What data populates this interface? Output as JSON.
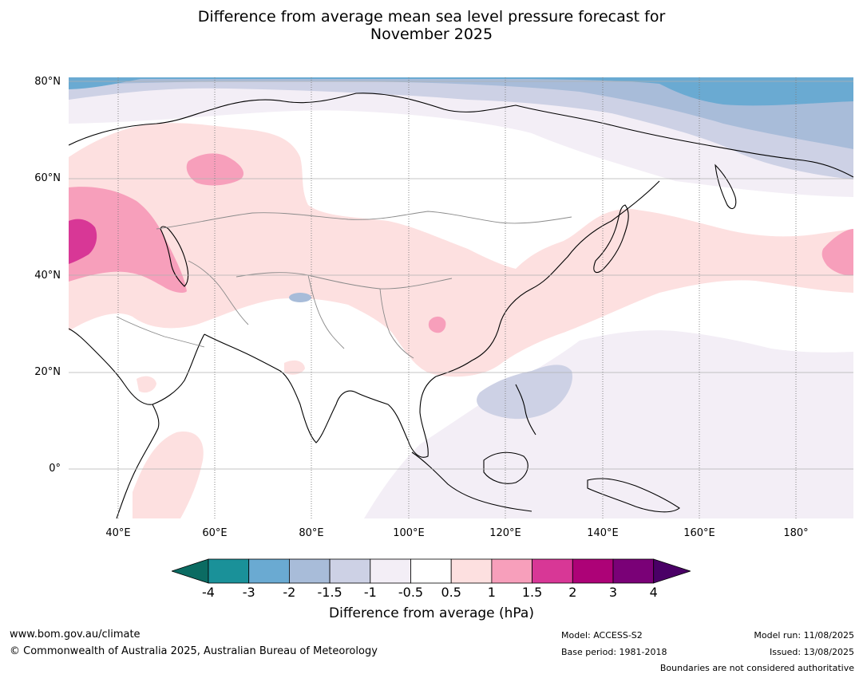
{
  "title": {
    "line1": "Difference from average mean sea level pressure forecast for",
    "line2": "November 2025"
  },
  "map": {
    "region": "Asia",
    "lat_labels": [
      "80°N",
      "60°N",
      "40°N",
      "20°N",
      "0°"
    ],
    "lon_labels": [
      "40°E",
      "60°E",
      "80°E",
      "100°E",
      "120°E",
      "140°E",
      "160°E",
      "180°"
    ]
  },
  "colorbar": {
    "label": "Difference from average (hPa)",
    "ticks": [
      "-4",
      "-3",
      "-2",
      "-1.5",
      "-1",
      "-0.5",
      "0.5",
      "1",
      "1.5",
      "2",
      "3",
      "4"
    ],
    "colors": [
      "#1a9199",
      "#6aaad2",
      "#a8bcd9",
      "#cdd1e5",
      "#f3eef6",
      "#ffffff",
      "#fde0e0",
      "#f79fbb",
      "#d83796",
      "#ad0277",
      "#7a0177"
    ],
    "under_color": "#0b6b62",
    "over_color": "#4a0066"
  },
  "footer": {
    "website": "www.bom.gov.au/climate",
    "copyright": "© Commonwealth of Australia 2025, Australian Bureau of Meteorology",
    "model": "Model: ACCESS-S2",
    "base_period": "Base period: 1981-2018",
    "model_run": "Model run: 11/08/2025",
    "issued": "Issued: 13/08/2025",
    "disclaimer": "Boundaries are not considered authoritative"
  }
}
